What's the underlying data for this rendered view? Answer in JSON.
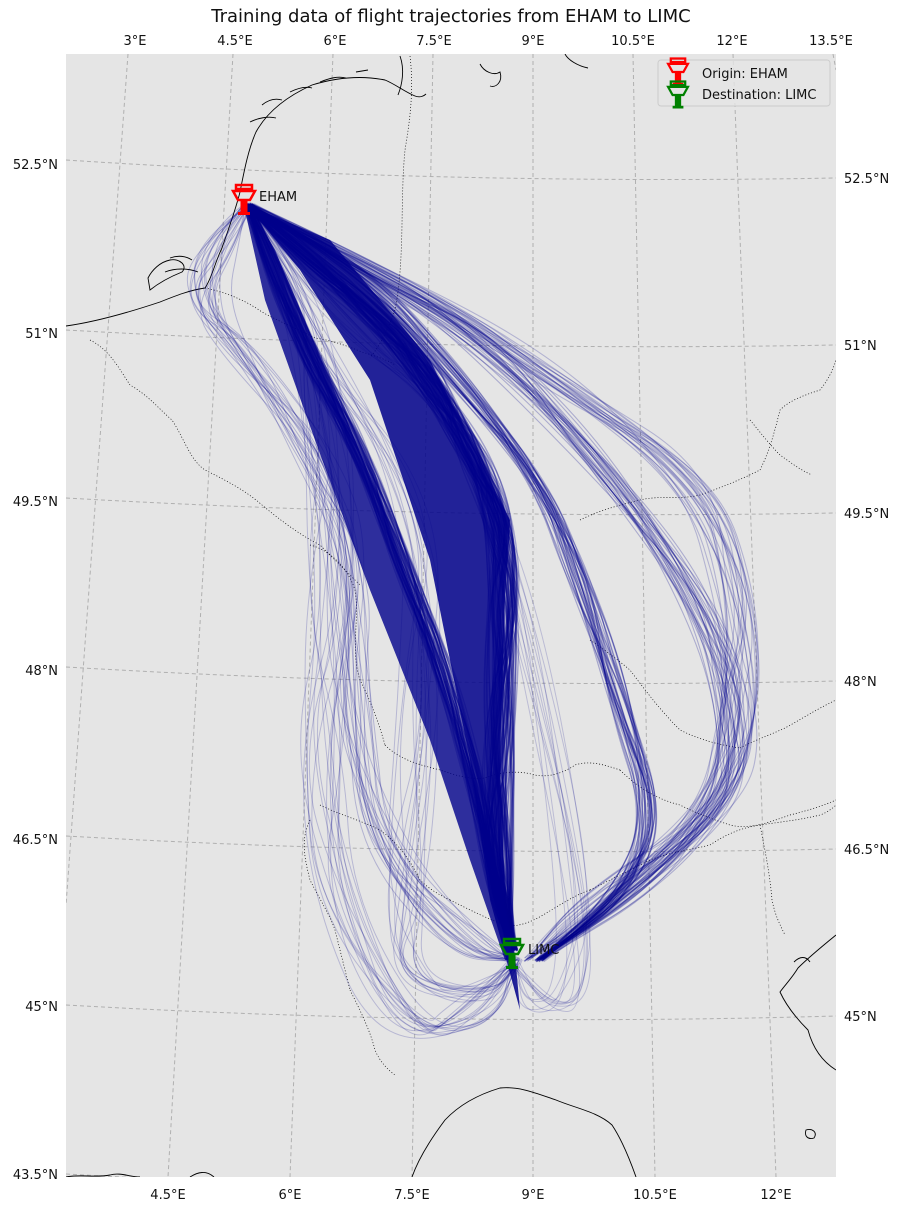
{
  "title": "Training data of flight trajectories from EHAM to LIMC",
  "colors": {
    "background": "#e5e5e5",
    "trajectory": "#00008b",
    "origin": "#ff0000",
    "destination": "#008000",
    "coastline": "#000000",
    "border": "#000000",
    "grid": "#b0b0b0"
  },
  "ticks": {
    "top": [
      "3°E",
      "4.5°E",
      "6°E",
      "7.5°E",
      "9°E",
      "10.5°E",
      "12°E",
      "13.5°E"
    ],
    "bottom": [
      "4.5°E",
      "6°E",
      "7.5°E",
      "9°E",
      "10.5°E",
      "12°E"
    ],
    "left": [
      "52.5°N",
      "51°N",
      "49.5°N",
      "48°N",
      "46.5°N",
      "45°N",
      "43.5°N"
    ],
    "right": [
      "52.5°N",
      "51°N",
      "49.5°N",
      "48°N",
      "46.5°N",
      "45°N"
    ]
  },
  "legend": {
    "origin_label": "Origin: EHAM",
    "destination_label": "Destination: LIMC"
  },
  "airports": {
    "origin": {
      "code": "EHAM",
      "lon": 4.76,
      "lat": 52.31
    },
    "destination": {
      "code": "LIMC",
      "lon": 8.72,
      "lat": 45.63
    }
  },
  "icons": {
    "origin_marker": "control-tower-icon",
    "destination_marker": "control-tower-icon"
  }
}
